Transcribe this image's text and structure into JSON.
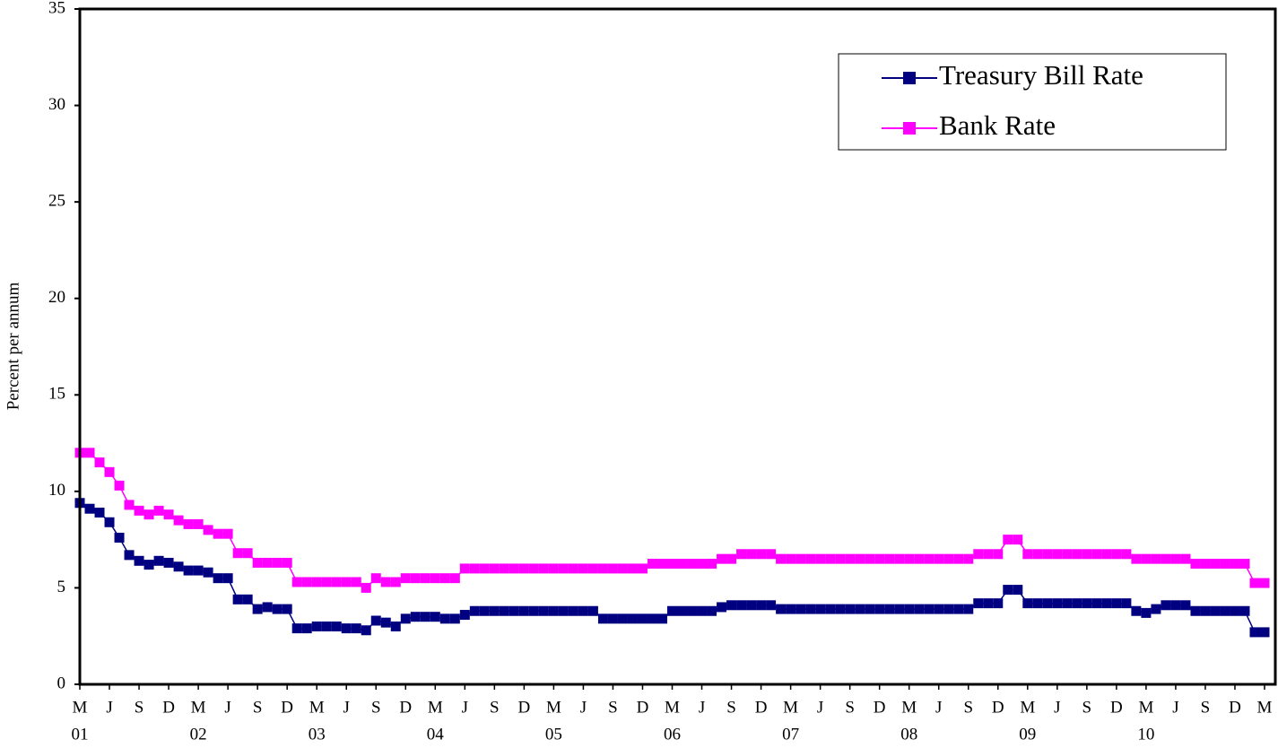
{
  "chart_data": {
    "type": "line",
    "y_label": "Percent per annum",
    "categories": [
      "M",
      null,
      null,
      "J",
      null,
      null,
      "S",
      null,
      null,
      "D",
      null,
      null,
      "M",
      null,
      null,
      "J",
      null,
      null,
      "S",
      null,
      null,
      "D",
      null,
      null,
      "M",
      null,
      null,
      "J",
      null,
      null,
      "S",
      null,
      null,
      "D",
      null,
      null,
      "M",
      null,
      null,
      "J",
      null,
      null,
      "S",
      null,
      null,
      "D",
      null,
      null,
      "M",
      null,
      null,
      "J",
      null,
      null,
      "S",
      null,
      null,
      "D",
      null,
      null,
      "M",
      null,
      null,
      "J",
      null,
      null,
      "S",
      null,
      null,
      "D",
      null,
      null,
      "M",
      null,
      null,
      "J",
      null,
      null,
      "S",
      null,
      null,
      "D",
      null,
      null,
      "M",
      null,
      null,
      "J",
      null,
      null,
      "S",
      null,
      null,
      "D",
      null,
      null,
      "M",
      null,
      null,
      "J",
      null,
      null,
      "S",
      null,
      null,
      "D",
      null,
      null,
      "M",
      null,
      null,
      "J",
      null,
      null,
      "S",
      null,
      null,
      "D",
      null,
      null,
      "M"
    ],
    "years": [
      "01",
      null,
      null,
      null,
      null,
      null,
      null,
      null,
      null,
      null,
      null,
      null,
      "02",
      null,
      null,
      null,
      null,
      null,
      null,
      null,
      null,
      null,
      null,
      null,
      "03",
      null,
      null,
      null,
      null,
      null,
      null,
      null,
      null,
      null,
      null,
      null,
      "04",
      null,
      null,
      null,
      null,
      null,
      null,
      null,
      null,
      null,
      null,
      null,
      "05",
      null,
      null,
      null,
      null,
      null,
      null,
      null,
      null,
      null,
      null,
      null,
      "06",
      null,
      null,
      null,
      null,
      null,
      null,
      null,
      null,
      null,
      null,
      null,
      "07",
      null,
      null,
      null,
      null,
      null,
      null,
      null,
      null,
      null,
      null,
      null,
      "08",
      null,
      null,
      null,
      null,
      null,
      null,
      null,
      null,
      null,
      null,
      null,
      "09",
      null,
      null,
      null,
      null,
      null,
      null,
      null,
      null,
      null,
      null,
      null,
      "10",
      null,
      null,
      null,
      null,
      null,
      null,
      null,
      null,
      null,
      null,
      null,
      null
    ],
    "series": [
      {
        "name": "Treasury Bill Rate",
        "color": "#000080",
        "values": [
          9.4,
          9.1,
          8.9,
          8.4,
          7.6,
          6.7,
          6.4,
          6.2,
          6.4,
          6.3,
          6.1,
          5.9,
          5.9,
          5.8,
          5.5,
          5.5,
          4.4,
          4.4,
          3.9,
          4.0,
          3.9,
          3.9,
          2.9,
          2.9,
          3.0,
          3.0,
          3.0,
          2.9,
          2.9,
          2.8,
          3.3,
          3.2,
          3.0,
          3.4,
          3.5,
          3.5,
          3.5,
          3.4,
          3.4,
          3.6,
          3.8,
          3.8,
          3.8,
          3.8,
          3.8,
          3.8,
          3.8,
          3.8,
          3.8,
          3.8,
          3.8,
          3.8,
          3.8,
          3.4,
          3.4,
          3.4,
          3.4,
          3.4,
          3.4,
          3.4,
          3.8,
          3.8,
          3.8,
          3.8,
          3.8,
          4.0,
          4.1,
          4.1,
          4.1,
          4.1,
          4.1,
          3.9,
          3.9,
          3.9,
          3.9,
          3.9,
          3.9,
          3.9,
          3.9,
          3.9,
          3.9,
          3.9,
          3.9,
          3.9,
          3.9,
          3.9,
          3.9,
          3.9,
          3.9,
          3.9,
          3.9,
          4.2,
          4.2,
          4.2,
          4.9,
          4.9,
          4.2,
          4.2,
          4.2,
          4.2,
          4.2,
          4.2,
          4.2,
          4.2,
          4.2,
          4.2,
          4.2,
          3.8,
          3.7,
          3.9,
          4.1,
          4.1,
          4.1,
          3.8,
          3.8,
          3.8,
          3.8,
          3.8,
          3.8,
          2.7,
          2.7
        ]
      },
      {
        "name": "Bank Rate",
        "color": "#ff00ff",
        "values": [
          12,
          12,
          11.5,
          11,
          10.3,
          9.3,
          9,
          8.8,
          9,
          8.8,
          8.5,
          8.3,
          8.3,
          8,
          7.8,
          7.8,
          6.8,
          6.8,
          6.3,
          6.3,
          6.3,
          6.3,
          5.3,
          5.3,
          5.3,
          5.3,
          5.3,
          5.3,
          5.3,
          5.0,
          5.5,
          5.3,
          5.3,
          5.5,
          5.5,
          5.5,
          5.5,
          5.5,
          5.5,
          6,
          6,
          6,
          6,
          6,
          6,
          6,
          6,
          6,
          6,
          6,
          6,
          6,
          6,
          6,
          6,
          6,
          6,
          6,
          6.25,
          6.25,
          6.25,
          6.25,
          6.25,
          6.25,
          6.25,
          6.5,
          6.5,
          6.75,
          6.75,
          6.75,
          6.75,
          6.5,
          6.5,
          6.5,
          6.5,
          6.5,
          6.5,
          6.5,
          6.5,
          6.5,
          6.5,
          6.5,
          6.5,
          6.5,
          6.5,
          6.5,
          6.5,
          6.5,
          6.5,
          6.5,
          6.5,
          6.75,
          6.75,
          6.75,
          7.5,
          7.5,
          6.75,
          6.75,
          6.75,
          6.75,
          6.75,
          6.75,
          6.75,
          6.75,
          6.75,
          6.75,
          6.75,
          6.5,
          6.5,
          6.5,
          6.5,
          6.5,
          6.5,
          6.25,
          6.25,
          6.25,
          6.25,
          6.25,
          6.25,
          5.25,
          5.25
        ]
      }
    ],
    "ylim": [
      0,
      35
    ],
    "yticks": [
      0,
      5,
      10,
      15,
      20,
      25,
      30,
      35
    ],
    "grid": false,
    "legend": "upper right"
  }
}
